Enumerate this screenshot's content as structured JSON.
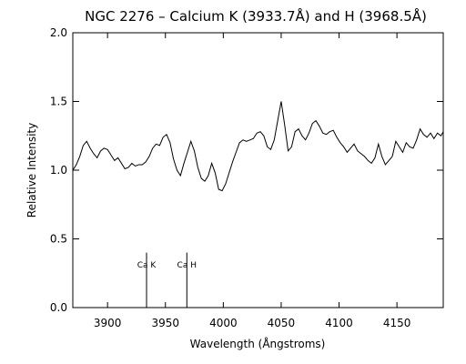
{
  "chart_data": {
    "type": "line",
    "title": "NGC 2276 – Calcium K (3933.7Å) and H (3968.5Å)",
    "xlabel": "Wavelength (Ångstroms)",
    "ylabel": "Relative Intensity",
    "xlim": [
      3870,
      4190
    ],
    "ylim": [
      0.0,
      2.0
    ],
    "xticks": [
      3900,
      3950,
      4000,
      4050,
      4100,
      4150
    ],
    "yticks": [
      0.0,
      0.5,
      1.0,
      1.5,
      2.0
    ],
    "xtick_labels": [
      "3900",
      "3950",
      "4000",
      "4050",
      "4100",
      "4150"
    ],
    "ytick_labels": [
      "0.0",
      "0.5",
      "1.0",
      "1.5",
      "2.0"
    ],
    "grid": false,
    "legend": "none",
    "line_color": "#000000",
    "series": [
      {
        "x": [
          3870,
          3873,
          3876,
          3879,
          3882,
          3885,
          3888,
          3891,
          3894,
          3897,
          3900,
          3903,
          3906,
          3909,
          3912,
          3915,
          3918,
          3921,
          3924,
          3927,
          3930,
          3933,
          3936,
          3939,
          3942,
          3945,
          3948,
          3951,
          3954,
          3957,
          3960,
          3963,
          3966,
          3969,
          3972,
          3975,
          3978,
          3981,
          3984,
          3987,
          3990,
          3993,
          3996,
          3999,
          4002,
          4005,
          4008,
          4011,
          4014,
          4017,
          4020,
          4023,
          4026,
          4029,
          4032,
          4035,
          4038,
          4041,
          4044,
          4047,
          4050,
          4053,
          4056,
          4059,
          4062,
          4065,
          4068,
          4071,
          4074,
          4077,
          4080,
          4083,
          4086,
          4089,
          4092,
          4095,
          4098,
          4101,
          4104,
          4107,
          4110,
          4113,
          4116,
          4119,
          4122,
          4125,
          4128,
          4131,
          4134,
          4137,
          4140,
          4143,
          4146,
          4149,
          4152,
          4155,
          4158,
          4161,
          4164,
          4167,
          4170,
          4173,
          4176,
          4179,
          4182,
          4185,
          4188,
          4190
        ],
        "values": [
          1.0,
          1.04,
          1.1,
          1.18,
          1.21,
          1.16,
          1.12,
          1.09,
          1.14,
          1.16,
          1.15,
          1.11,
          1.07,
          1.09,
          1.05,
          1.01,
          1.02,
          1.05,
          1.03,
          1.04,
          1.04,
          1.06,
          1.1,
          1.16,
          1.19,
          1.18,
          1.24,
          1.26,
          1.2,
          1.08,
          1.0,
          0.96,
          1.05,
          1.13,
          1.21,
          1.14,
          1.02,
          0.94,
          0.92,
          0.96,
          1.05,
          0.98,
          0.86,
          0.85,
          0.9,
          0.98,
          1.06,
          1.13,
          1.2,
          1.22,
          1.21,
          1.22,
          1.23,
          1.27,
          1.28,
          1.25,
          1.17,
          1.15,
          1.22,
          1.36,
          1.5,
          1.33,
          1.14,
          1.17,
          1.28,
          1.3,
          1.25,
          1.22,
          1.27,
          1.34,
          1.36,
          1.32,
          1.27,
          1.26,
          1.28,
          1.29,
          1.24,
          1.2,
          1.17,
          1.13,
          1.16,
          1.19,
          1.14,
          1.12,
          1.1,
          1.07,
          1.05,
          1.09,
          1.19,
          1.1,
          1.04,
          1.07,
          1.1,
          1.21,
          1.17,
          1.13,
          1.2,
          1.17,
          1.16,
          1.22,
          1.3,
          1.26,
          1.24,
          1.27,
          1.23,
          1.27,
          1.25,
          1.28
        ]
      }
    ],
    "markers": [
      {
        "label": "Ca K",
        "x": 3933.7,
        "ymax": 0.4
      },
      {
        "label": "Ca H",
        "x": 3968.5,
        "ymax": 0.4
      }
    ]
  }
}
